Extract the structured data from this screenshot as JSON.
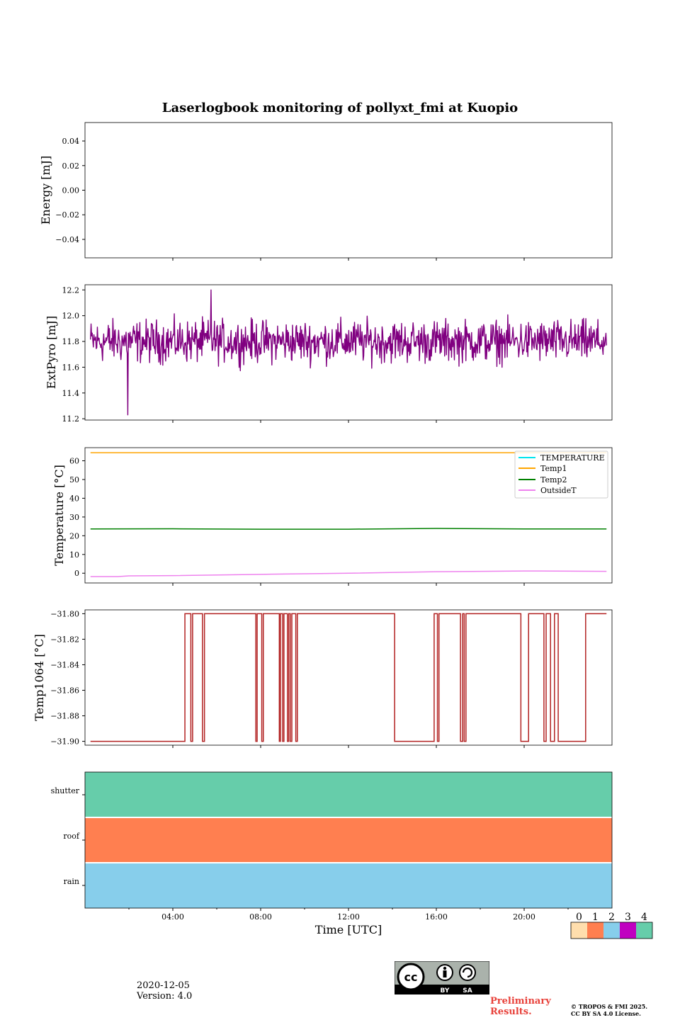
{
  "title": "Laserlogbook monitoring of pollyxt_fmi at Kuopio",
  "date": "2020-12-05",
  "version": "Version: 4.0",
  "preliminary": "Preliminary Results.",
  "copyright": "© TROPOS & FMI 2025. CC BY SA 4.0 License.",
  "license_badge": {
    "left": "BY",
    "right": "SA",
    "cc": "cc"
  },
  "colors": {
    "extpyro": "#800080",
    "temperature": "#00e5ee",
    "temp1": "#ffa500",
    "temp2": "#008000",
    "outside": "#ee82ee",
    "temp1064": "#b22222",
    "shutter": "#66cdaa",
    "roof": "#ff7f50",
    "rain": "#87ceeb"
  },
  "chart_data": [
    {
      "type": "line",
      "name": "energy",
      "ylabel": "Energy [mJ]",
      "ylim": [
        -0.055,
        0.055
      ],
      "yticks": [
        "0.04",
        "0.02",
        "0.00",
        "−0.02",
        "−0.04"
      ],
      "ytick_values": [
        0.04,
        0.02,
        0.0,
        -0.02,
        -0.04
      ],
      "series": []
    },
    {
      "type": "line",
      "name": "extpyro",
      "ylabel": "ExtPyro [mJ]",
      "ylim": [
        11.19,
        12.24
      ],
      "yticks": [
        "12.2",
        "12.0",
        "11.8",
        "11.6",
        "11.4",
        "11.2"
      ],
      "ytick_values": [
        12.2,
        12.0,
        11.8,
        11.6,
        11.4,
        11.2
      ],
      "x_range_hours": [
        0.25,
        23.75
      ],
      "series": [
        {
          "name": "ExtPyro",
          "mean": 11.8,
          "spread": 0.1,
          "min": 11.23,
          "max": 12.2
        }
      ]
    },
    {
      "type": "line",
      "name": "temperature",
      "ylabel": "Temperature [°C]",
      "ylim": [
        -5.2,
        67
      ],
      "yticks": [
        "60",
        "50",
        "40",
        "30",
        "20",
        "10",
        "0"
      ],
      "ytick_values": [
        60,
        50,
        40,
        30,
        20,
        10,
        0
      ],
      "legend": [
        "TEMPERATURE",
        "Temp1",
        "Temp2",
        "OutsideT"
      ],
      "legend_position": "top-right",
      "series": [
        {
          "name": "TEMPERATURE",
          "x": [],
          "y": []
        },
        {
          "name": "Temp1",
          "x": [
            0.25,
            23.75
          ],
          "y": [
            64.3,
            64.3
          ]
        },
        {
          "name": "Temp2",
          "x": [
            0.25,
            4,
            8,
            12,
            16,
            20,
            23.75
          ],
          "y": [
            23.6,
            23.7,
            23.5,
            23.5,
            23.9,
            23.6,
            23.6
          ]
        },
        {
          "name": "OutsideT",
          "x": [
            0.25,
            1.5,
            2,
            4,
            8,
            12,
            16,
            20,
            23.75
          ],
          "y": [
            -1.8,
            -1.8,
            -1.4,
            -1.3,
            -0.6,
            0.0,
            0.8,
            1.2,
            1.0
          ]
        }
      ]
    },
    {
      "type": "line",
      "name": "temp1064",
      "ylabel": "Temp1064 [°C]",
      "ylim": [
        -31.903,
        -31.797
      ],
      "yticks": [
        "−31.80",
        "−31.82",
        "−31.84",
        "−31.86",
        "−31.88",
        "−31.90"
      ],
      "ytick_values": [
        -31.8,
        -31.82,
        -31.84,
        -31.86,
        -31.88,
        -31.9
      ],
      "series": [
        {
          "name": "Temp1064",
          "levels": [
            -31.9,
            -31.8
          ],
          "high_intervals_hours": [
            [
              4.55,
              4.82
            ],
            [
              4.9,
              5.35
            ],
            [
              5.44,
              7.78
            ],
            [
              7.84,
              8.05
            ],
            [
              8.12,
              8.85
            ],
            [
              8.9,
              9.0
            ],
            [
              9.06,
              9.22
            ],
            [
              9.28,
              9.35
            ],
            [
              9.42,
              9.6
            ],
            [
              9.67,
              14.1
            ],
            [
              15.9,
              16.05
            ],
            [
              16.12,
              17.1
            ],
            [
              17.2,
              17.27
            ],
            [
              17.35,
              19.85
            ],
            [
              20.2,
              20.9
            ],
            [
              21.0,
              21.2
            ],
            [
              21.38,
              21.55
            ],
            [
              22.8,
              23.75
            ]
          ]
        }
      ]
    },
    {
      "type": "status",
      "name": "flags",
      "yticks": [
        "shutter",
        "roof",
        "rain"
      ],
      "rows": [
        {
          "label": "shutter",
          "value": 4
        },
        {
          "label": "roof",
          "value": 1
        },
        {
          "label": "rain",
          "value": 2
        }
      ],
      "xlabel": "Time [UTC]",
      "xticks": [
        "04:00",
        "08:00",
        "12:00",
        "16:00",
        "20:00"
      ],
      "xtick_values": [
        4,
        8,
        12,
        16,
        20
      ],
      "xlim_hours": [
        0,
        24
      ],
      "colorbar": {
        "labels": [
          "0",
          "1",
          "2",
          "3",
          "4"
        ],
        "colors": [
          "#ffdead",
          "#ff7f50",
          "#87ceeb",
          "#c000c0",
          "#66cdaa"
        ]
      }
    }
  ]
}
